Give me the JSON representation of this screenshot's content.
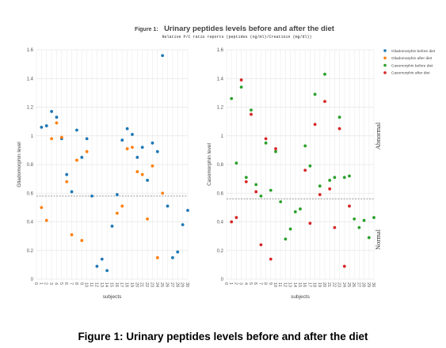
{
  "header": {
    "title_prefix": "Figure 1:",
    "title_main": "Urinary peptides levels before and after the diet",
    "subtitle": "Relative P/C ratio reports (peptides (ng/ml)/Creatinin (mg/dl))"
  },
  "caption": "Figure 1: Urinary peptides levels before and after the diet",
  "chart_data": [
    {
      "type": "scatter",
      "xlabel": "subjects",
      "ylabel": "Gliadomorphin level",
      "xlim": [
        0,
        30
      ],
      "ylim": [
        0,
        1.6
      ],
      "yticks": [
        "0",
        "0.2",
        "0.4",
        "0.6",
        "0.8",
        "1",
        "1.2",
        "1.4",
        "1.6"
      ],
      "threshold": 0.58,
      "series": [
        {
          "name": "Gliadomorphin before diet",
          "color": "#1f77b4",
          "points": [
            [
              1,
              1.06
            ],
            [
              2,
              1.07
            ],
            [
              3,
              1.17
            ],
            [
              4,
              1.13
            ],
            [
              5,
              0.98
            ],
            [
              6,
              0.73
            ],
            [
              7,
              0.61
            ],
            [
              8,
              1.04
            ],
            [
              9,
              0.85
            ],
            [
              10,
              0.98
            ],
            [
              11,
              0.58
            ],
            [
              12,
              0.09
            ],
            [
              13,
              0.14
            ],
            [
              14,
              0.06
            ],
            [
              15,
              0.37
            ],
            [
              16,
              0.59
            ],
            [
              17,
              0.97
            ],
            [
              18,
              1.05
            ],
            [
              19,
              1.01
            ],
            [
              20,
              0.85
            ],
            [
              21,
              0.92
            ],
            [
              22,
              0.69
            ],
            [
              23,
              0.95
            ],
            [
              24,
              0.89
            ],
            [
              25,
              1.56
            ],
            [
              26,
              0.51
            ],
            [
              27,
              0.15
            ],
            [
              28,
              0.19
            ],
            [
              29,
              0.38
            ],
            [
              30,
              0.48
            ]
          ]
        },
        {
          "name": "Gliadomorphin after diet",
          "color": "#ff7f0e",
          "points": [
            [
              1,
              0.5
            ],
            [
              2,
              0.41
            ],
            [
              3,
              0.98
            ],
            [
              4,
              1.09
            ],
            [
              5,
              0.99
            ],
            [
              6,
              0.68
            ],
            [
              7,
              0.31
            ],
            [
              8,
              0.83
            ],
            [
              9,
              0.27
            ],
            [
              10,
              0.89
            ],
            [
              16,
              0.46
            ],
            [
              17,
              0.51
            ],
            [
              18,
              0.91
            ],
            [
              19,
              0.92
            ],
            [
              20,
              0.75
            ],
            [
              21,
              0.73
            ],
            [
              22,
              0.42
            ],
            [
              23,
              0.79
            ],
            [
              24,
              0.15
            ],
            [
              25,
              0.6
            ]
          ]
        }
      ]
    },
    {
      "type": "scatter",
      "xlabel": "subjects",
      "ylabel": "Casomorphin level",
      "xlim": [
        0,
        30
      ],
      "ylim": [
        0,
        1.6
      ],
      "yticks": [
        "0",
        "0.2",
        "0.4",
        "0.6",
        "0.8",
        "1",
        "1.2",
        "1.4",
        "1.6"
      ],
      "threshold": 0.56,
      "annotations": [
        "Abnormal",
        "Normal"
      ],
      "series": [
        {
          "name": "Casomorphin before diet",
          "color": "#2ca02c",
          "points": [
            [
              1,
              1.26
            ],
            [
              2,
              0.81
            ],
            [
              3,
              1.34
            ],
            [
              4,
              0.71
            ],
            [
              5,
              1.18
            ],
            [
              6,
              0.66
            ],
            [
              7,
              0.58
            ],
            [
              8,
              0.95
            ],
            [
              9,
              0.62
            ],
            [
              10,
              0.89
            ],
            [
              11,
              0.54
            ],
            [
              12,
              0.28
            ],
            [
              13,
              0.35
            ],
            [
              14,
              0.47
            ],
            [
              15,
              0.49
            ],
            [
              16,
              0.93
            ],
            [
              17,
              0.79
            ],
            [
              18,
              1.29
            ],
            [
              19,
              0.65
            ],
            [
              20,
              1.43
            ],
            [
              21,
              0.69
            ],
            [
              22,
              0.71
            ],
            [
              23,
              1.13
            ],
            [
              24,
              0.71
            ],
            [
              25,
              0.72
            ],
            [
              26,
              0.42
            ],
            [
              27,
              0.36
            ],
            [
              28,
              0.41
            ],
            [
              29,
              0.29
            ],
            [
              30,
              0.43
            ]
          ]
        },
        {
          "name": "Casomorphin after diet",
          "color": "#d62728",
          "points": [
            [
              1,
              0.4
            ],
            [
              2,
              0.43
            ],
            [
              3,
              1.39
            ],
            [
              4,
              0.68
            ],
            [
              5,
              1.15
            ],
            [
              6,
              0.61
            ],
            [
              7,
              0.24
            ],
            [
              8,
              0.98
            ],
            [
              9,
              0.14
            ],
            [
              10,
              0.91
            ],
            [
              16,
              0.76
            ],
            [
              17,
              0.39
            ],
            [
              18,
              1.08
            ],
            [
              19,
              0.59
            ],
            [
              20,
              1.24
            ],
            [
              21,
              0.63
            ],
            [
              22,
              0.36
            ],
            [
              23,
              1.05
            ],
            [
              24,
              0.09
            ],
            [
              25,
              0.51
            ]
          ]
        }
      ]
    }
  ]
}
